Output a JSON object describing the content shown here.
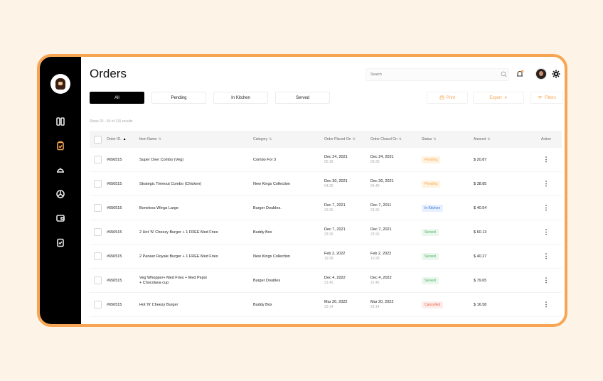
{
  "page": {
    "title": "Orders"
  },
  "search": {
    "placeholder": "Search"
  },
  "tabs": [
    {
      "label": "All",
      "active": true
    },
    {
      "label": "Pending"
    },
    {
      "label": "In Kitchen"
    },
    {
      "label": "Served"
    }
  ],
  "actions": {
    "print": "Print",
    "export": "Export",
    "filters": "Filters"
  },
  "results_text": "Show 20 - 50 of 115 results",
  "columns": [
    "Order ID.",
    "Item Name",
    "Category",
    "Order Placed On",
    "Order Closed On",
    "Status",
    "Amount",
    "Action"
  ],
  "rows": [
    {
      "id": "#656515",
      "item": "Super Over Combo (Veg)",
      "item2": "",
      "category": "Combo For 3",
      "placed_date": "Dec 24, 2021",
      "placed_time": "05:18",
      "closed_date": "Dec 24, 2021",
      "closed_time": "05:30",
      "status": "Pending",
      "amount": "$ 20.87"
    },
    {
      "id": "#656515",
      "item": "Strategic Timeout Combo (Chicken)",
      "item2": "",
      "category": "New Kings Collection",
      "placed_date": "Dec 30, 2021",
      "placed_time": "04:25",
      "closed_date": "Dec 30, 2021",
      "closed_time": "04:40",
      "status": "Pending",
      "amount": "$ 38.85"
    },
    {
      "id": "#656515",
      "item": "Boneless Wings Large",
      "item2": "",
      "category": "Burger Doubles.",
      "placed_date": "Dec 7, 2021",
      "placed_time": "23:26",
      "closed_date": "Dec 7, 2011",
      "closed_time": "23:26",
      "status": "In Kitchen",
      "amount": "$ 40.54"
    },
    {
      "id": "#656515",
      "item": "2 Hot 'N' Cheezy Burger + 1 FREE Med Fries",
      "item2": "",
      "category": "Buddy Box",
      "placed_date": "Dec 7, 2021",
      "placed_time": "23:26",
      "closed_date": "Dec 7, 2021",
      "closed_time": "23:26",
      "status": "Served",
      "amount": "$ 60.13"
    },
    {
      "id": "#656515",
      "item": "2 Paneer Royale Burger + 1 FREE Med Fries",
      "item2": "",
      "category": "New Kings Collection",
      "placed_date": "Feb 2, 2022",
      "placed_time": "19:28",
      "closed_date": "Feb 2, 2022",
      "closed_time": "19:28",
      "status": "Served",
      "amount": "$ 40.27"
    },
    {
      "id": "#656515",
      "item": "Veg Whopper+ Med Fries + Med Pepsi",
      "item2": "+ Chocolava cup",
      "category": "Burger Doubles",
      "placed_date": "Dec 4, 2022",
      "placed_time": "21:42",
      "closed_date": "Dec 4, 2022",
      "closed_time": "21:42",
      "status": "Served",
      "amount": "$ 79.65"
    },
    {
      "id": "#656515",
      "item": "Hot 'N' Cheezy Burger",
      "item2": "",
      "category": "Buddy Box",
      "placed_date": "Mar 20, 2022",
      "placed_time": "23:14",
      "closed_date": "Mar 20, 2022",
      "closed_time": "23:14",
      "status": "Cancelled",
      "amount": "$ 16.58"
    }
  ],
  "status_colors": {
    "Pending": {
      "bg": "#fff3e0",
      "fg": "#f7a553"
    },
    "In Kitchen": {
      "bg": "#e6f0ff",
      "fg": "#3b6fd8"
    },
    "Served": {
      "bg": "#e9f7ec",
      "fg": "#4caf60"
    },
    "Cancelled": {
      "bg": "#fdecec",
      "fg": "#f0643f"
    }
  },
  "accent": "#f7a553",
  "icons": [
    "logo",
    "dashboard-icon",
    "orders-icon",
    "menu-cloche-icon",
    "reports-icon",
    "wallet-icon",
    "tasks-icon",
    "search-icon",
    "bell-icon",
    "avatar",
    "gear-icon"
  ]
}
